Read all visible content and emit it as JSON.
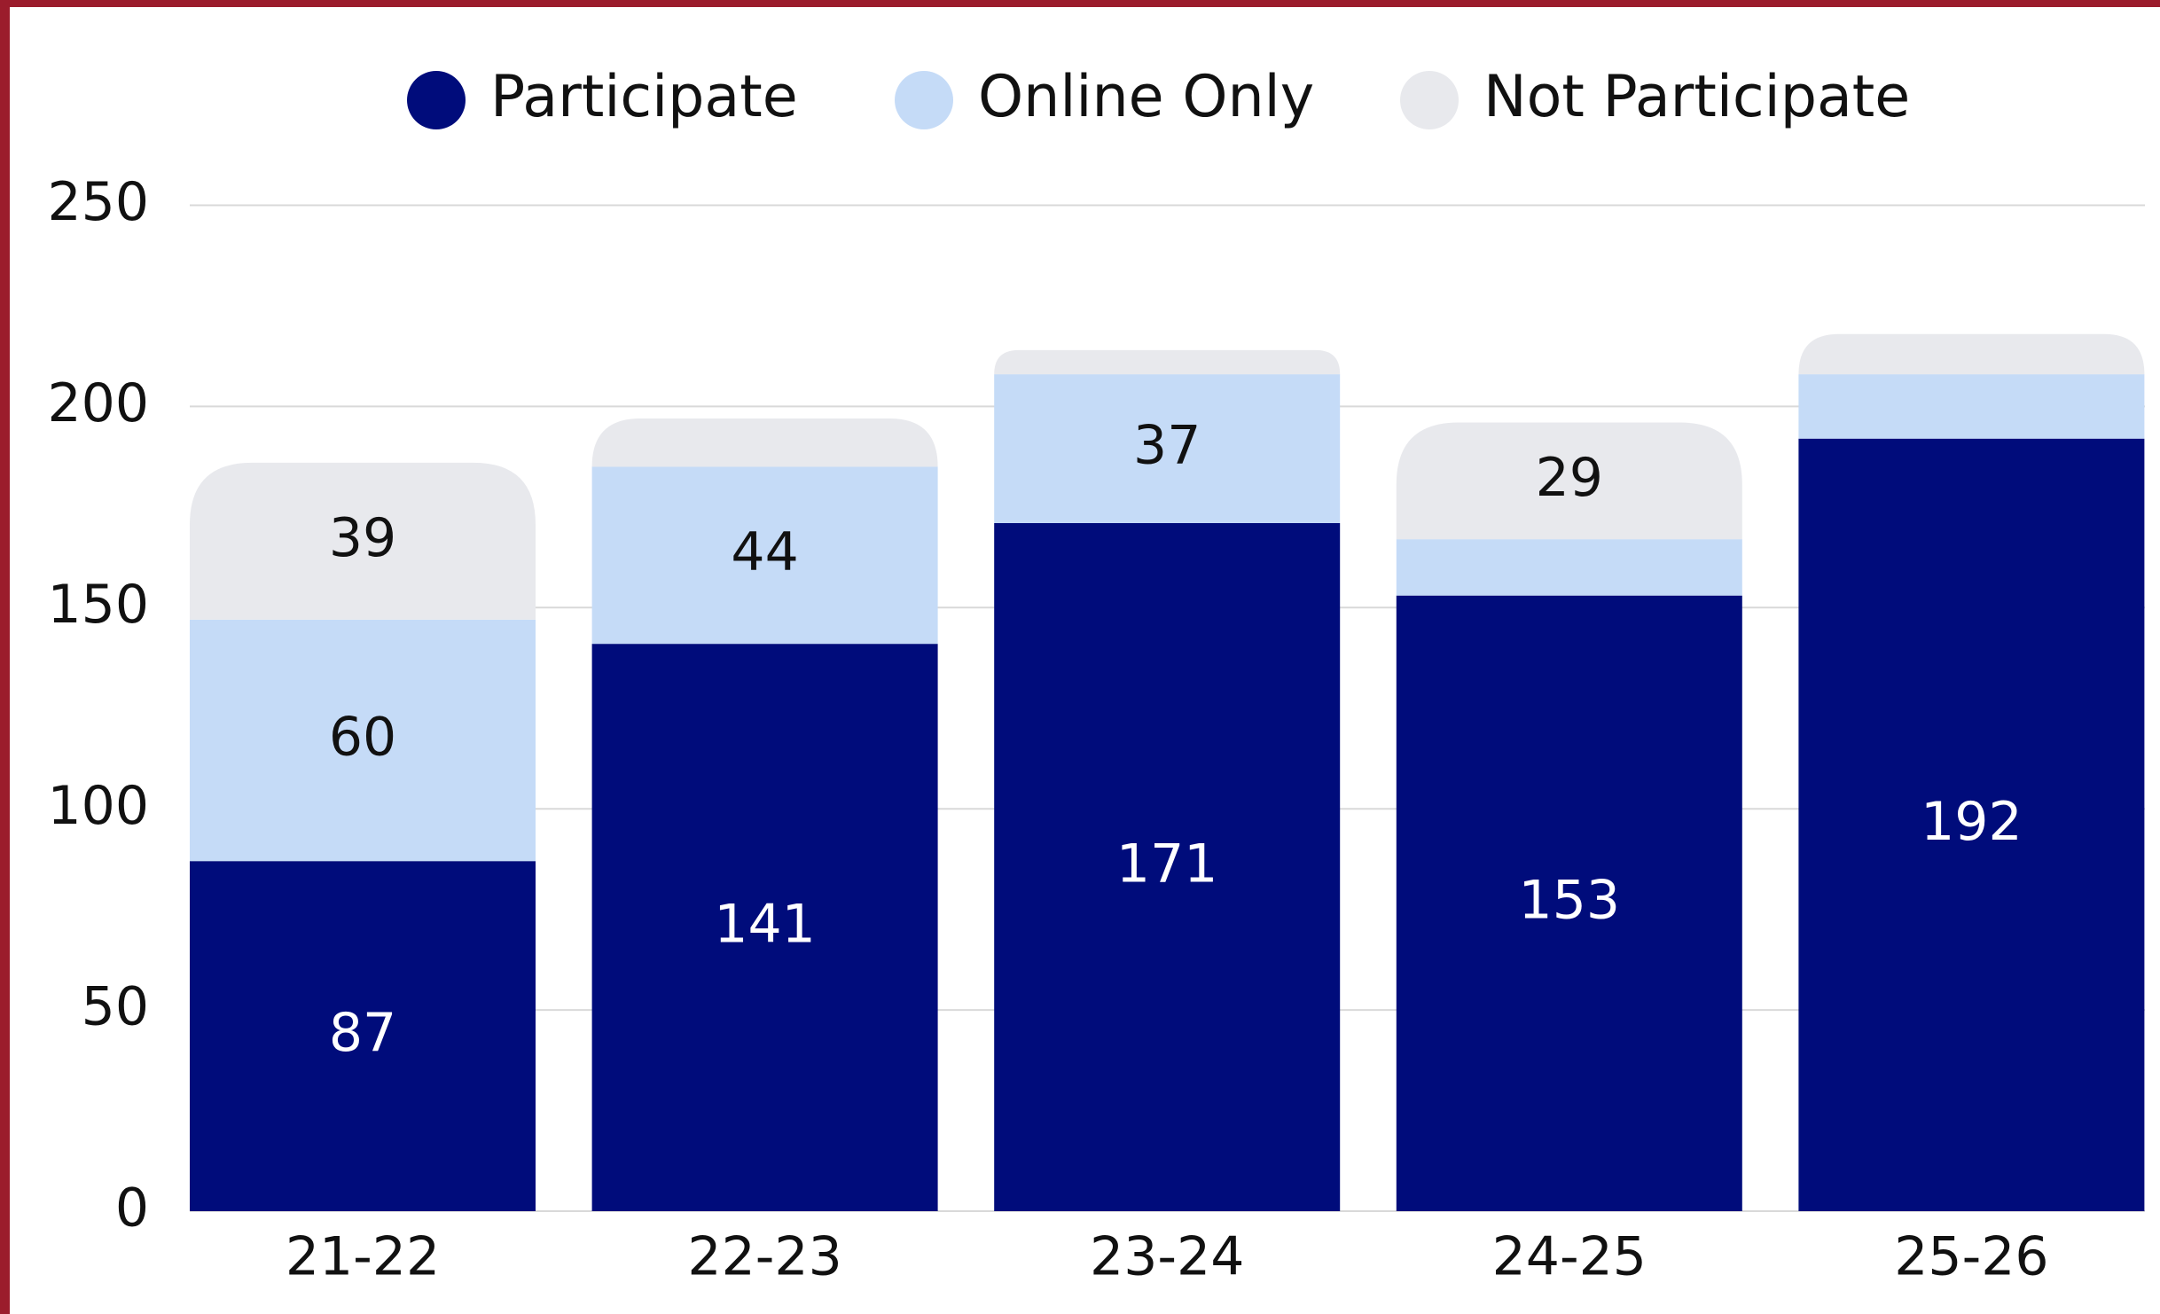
{
  "chart_data": {
    "type": "stacked_bar",
    "categories": [
      "21-22",
      "22-23",
      "23-24",
      "24-25",
      "25-26"
    ],
    "series": [
      {
        "name": "Participate",
        "color": "#000c7b",
        "values": [
          87,
          141,
          171,
          153,
          192
        ]
      },
      {
        "name": "Online Only",
        "color": "#c5dbf7",
        "values": [
          60,
          44,
          37,
          14,
          16
        ]
      },
      {
        "name": "Not Participate",
        "color": "#e8e9ed",
        "values": [
          39,
          12,
          6,
          29,
          10
        ]
      }
    ],
    "ylim": [
      0,
      250
    ],
    "yticks": [
      0,
      50,
      100,
      150,
      200,
      250
    ],
    "grid": true,
    "legend": "top"
  }
}
